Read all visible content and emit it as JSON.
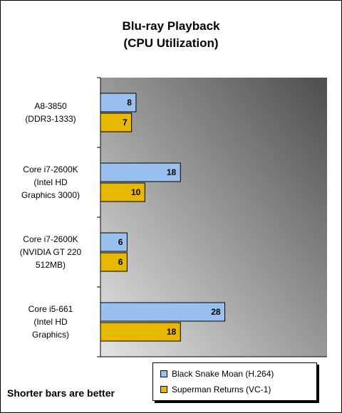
{
  "chart_data": {
    "type": "bar",
    "orientation": "horizontal",
    "title": "Blu-ray  Playback",
    "subtitle": "(CPU Utilization)",
    "categories": [
      [
        "A8-3850",
        "(DDR3-1333)"
      ],
      [
        "Core i7-2600K",
        "(Intel HD",
        "Graphics 3000)"
      ],
      [
        "Core i7-2600K",
        "(NVIDIA GT 220",
        "512MB)"
      ],
      [
        "Core i5-661",
        "(Intel HD",
        "Graphics)"
      ]
    ],
    "series": [
      {
        "name": "Black Snake Moan (H.264)",
        "values": [
          8,
          18,
          6,
          28
        ],
        "color": "#99c0ee"
      },
      {
        "name": "Superman Returns (VC-1)",
        "values": [
          7,
          10,
          6,
          18
        ],
        "color": "#e8b800"
      }
    ],
    "xlim": [
      0,
      51
    ],
    "grid": false,
    "legend_position": "bottom-right",
    "plot_gradient": [
      "#4d4d4d",
      "#e4e4e4"
    ]
  },
  "footer_note": "Shorter bars are better"
}
